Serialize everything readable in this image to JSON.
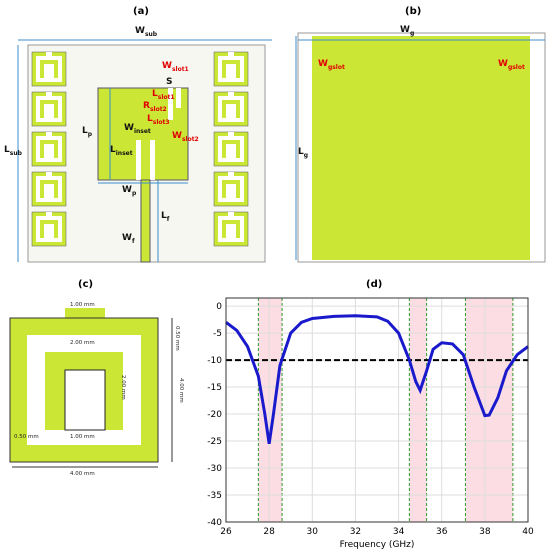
{
  "panel_a": {
    "label": "(a)",
    "dims": [
      {
        "main": "W",
        "sub": "sub"
      },
      {
        "main": "L",
        "sub": "sub"
      },
      {
        "main": "W",
        "sub": "slot1"
      },
      {
        "main": "S",
        "sub": ""
      },
      {
        "main": "L",
        "sub": "slot1"
      },
      {
        "main": "R",
        "sub": "slot2"
      },
      {
        "main": "L",
        "sub": "slot3"
      },
      {
        "main": "W",
        "sub": "slot2"
      },
      {
        "main": "W",
        "sub": "inset"
      },
      {
        "main": "L",
        "sub": "p"
      },
      {
        "main": "L",
        "sub": "inset"
      },
      {
        "main": "W",
        "sub": "p"
      },
      {
        "main": "L",
        "sub": "f"
      },
      {
        "main": "W",
        "sub": "f"
      }
    ]
  },
  "panel_b": {
    "label": "(b)",
    "dims": [
      {
        "main": "W",
        "sub": "g"
      },
      {
        "main": "W",
        "sub": "gslot"
      },
      {
        "main": "W",
        "sub": "gslot"
      },
      {
        "main": "L",
        "sub": "g"
      }
    ]
  },
  "panel_c": {
    "label": "(c)",
    "dims": [
      "1.00 mm",
      "2.00 mm",
      "2.00 mm",
      "0.50 mm",
      "1.00 mm",
      "4.00 mm",
      "4.00 mm",
      "0.50 mm"
    ]
  },
  "chart_data": {
    "type": "line",
    "panel_label": "(d)",
    "x_label": "Frequency (GHz)",
    "x": [
      26,
      26.5,
      27,
      27.5,
      27.8,
      28,
      28.2,
      28.5,
      29,
      29.5,
      30,
      31,
      32,
      33,
      33.5,
      34,
      34.5,
      34.8,
      35,
      35.3,
      35.6,
      36,
      36.5,
      37,
      37.5,
      38,
      38.2,
      38.6,
      39,
      39.5,
      40
    ],
    "values": [
      -3,
      -4.5,
      -7.5,
      -13,
      -20,
      -25.5,
      -20,
      -11,
      -5,
      -3,
      -2.3,
      -1.9,
      -1.8,
      -2,
      -2.8,
      -5,
      -10,
      -14,
      -15.6,
      -12,
      -8,
      -6.8,
      -7,
      -9,
      -15,
      -20.3,
      -20.2,
      -17,
      -12,
      -9,
      -7.5
    ],
    "color": "#1a1acc",
    "xlim": [
      26,
      40
    ],
    "ylim": [
      -40,
      1.5
    ],
    "xticks": [
      26,
      28,
      30,
      32,
      34,
      36,
      38,
      40
    ],
    "yticks": [
      0,
      -5,
      -10,
      -15,
      -20,
      -25,
      -30,
      -35,
      -40
    ],
    "threshold": -10,
    "shaded_ranges": [
      [
        27.5,
        28.6
      ],
      [
        34.5,
        35.3
      ],
      [
        37.1,
        39.3
      ]
    ],
    "grid": true
  }
}
